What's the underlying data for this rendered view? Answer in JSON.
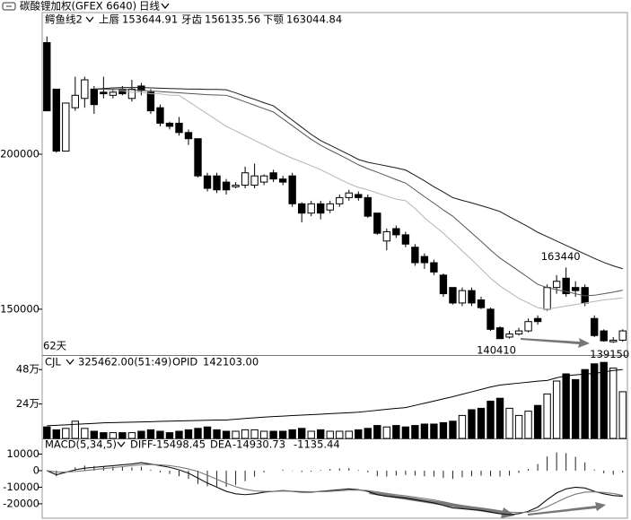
{
  "header": {
    "title": "碳酸锂加权(GFEX 6640)",
    "period": "日线"
  },
  "chart_data": [
    {
      "type": "candlestick",
      "indicator": "鳄鱼线2",
      "period_label": "62天",
      "up_color": "#ffffff",
      "down_color": "#000000",
      "ylim": [
        135500,
        245700
      ],
      "yticks": [
        150000,
        200000
      ],
      "open": [
        236000,
        221000,
        201000,
        215000,
        218000,
        221000,
        220000,
        219000,
        221000,
        218000,
        222000,
        220000,
        215000,
        210000,
        210000,
        207000,
        205000,
        193000,
        193000,
        191000,
        189500,
        190000,
        190000,
        191000,
        194000,
        192000,
        193000,
        184000,
        181000,
        184000,
        182000,
        184000,
        186000,
        187000,
        186000,
        181000,
        172000,
        176000,
        174000,
        170000,
        167000,
        165000,
        161000,
        157000,
        152000,
        156000,
        153000,
        150000,
        144000,
        141000,
        142000,
        143000,
        147000,
        150000,
        157000,
        160000,
        157000,
        157000,
        147000,
        143000,
        139500,
        140000
      ],
      "high": [
        238000,
        221000,
        216500,
        225000,
        225000,
        222000,
        225000,
        221000,
        222000,
        224000,
        223000,
        221000,
        216000,
        210500,
        212000,
        208000,
        205000,
        194000,
        194000,
        192000,
        191000,
        196000,
        197000,
        193500,
        195000,
        193000,
        194000,
        184500,
        185000,
        185000,
        185000,
        187000,
        188500,
        188000,
        187000,
        181000,
        176000,
        177000,
        175000,
        171000,
        168000,
        166000,
        161500,
        157000,
        157000,
        157000,
        154000,
        150500,
        144500,
        143000,
        144000,
        147000,
        148000,
        158000,
        161000,
        163440,
        159000,
        158000,
        148000,
        143500,
        141000,
        143500
      ],
      "low": [
        214000,
        200500,
        201000,
        214000,
        215000,
        213000,
        218000,
        218000,
        219000,
        217000,
        219000,
        213000,
        209000,
        208000,
        206000,
        203000,
        192500,
        188000,
        187500,
        187000,
        189000,
        189000,
        189000,
        190000,
        191000,
        190000,
        183000,
        178000,
        180000,
        179000,
        181000,
        183000,
        185000,
        185000,
        179500,
        174000,
        169000,
        173000,
        170000,
        164000,
        163000,
        161000,
        154000,
        151500,
        151000,
        151000,
        150000,
        143000,
        140410,
        140500,
        141500,
        142500,
        145000,
        149500,
        155000,
        154000,
        154000,
        151000,
        141000,
        139500,
        139150,
        139500
      ],
      "close": [
        214000,
        201000,
        216500,
        219000,
        224000,
        216000,
        219500,
        220000,
        219500,
        221000,
        220500,
        214000,
        210000,
        209000,
        207000,
        205000,
        193000,
        189000,
        188500,
        188500,
        190000,
        194000,
        193000,
        193000,
        192000,
        191000,
        184000,
        181000,
        184000,
        181000,
        184000,
        186000,
        187500,
        186000,
        180000,
        174500,
        175000,
        174000,
        171000,
        165000,
        165000,
        162000,
        155000,
        152000,
        156000,
        152000,
        150500,
        143500,
        140500,
        142000,
        143000,
        146000,
        146000,
        157000,
        159000,
        155000,
        156000,
        152000,
        141500,
        139800,
        140000,
        143000
      ],
      "series": [
        {
          "name": "上唇",
          "current": 153644.91,
          "color": "#b4b4b4",
          "values": [
            null,
            null,
            null,
            null,
            null,
            221000,
            221000,
            220500,
            220500,
            220000,
            220000,
            219500,
            219500,
            219000,
            219000,
            217000,
            215000,
            213000,
            211000,
            209000,
            207500,
            206000,
            204500,
            203000,
            201500,
            200000,
            198700,
            197500,
            196300,
            195000,
            193500,
            192000,
            190500,
            189300,
            188500,
            187500,
            186500,
            185500,
            185000,
            182500,
            179500,
            177000,
            174500,
            171700,
            168800,
            166000,
            163000,
            160000,
            157500,
            155500,
            153500,
            152000,
            150500,
            150000,
            150500,
            151000,
            151500,
            152000,
            152500,
            153000,
            153300,
            153645
          ]
        },
        {
          "name": "牙齿",
          "current": 156135.56,
          "color": "#555555",
          "values": [
            null,
            null,
            null,
            null,
            null,
            221000,
            221000,
            221000,
            221000,
            220800,
            220600,
            220400,
            220200,
            220000,
            219800,
            219600,
            219400,
            219200,
            219100,
            219000,
            218000,
            216900,
            215800,
            214700,
            213600,
            211400,
            209200,
            207000,
            204800,
            202900,
            201300,
            199800,
            198200,
            196600,
            195300,
            194200,
            193000,
            191800,
            190700,
            188500,
            186300,
            184200,
            182000,
            180000,
            177300,
            174600,
            171900,
            169100,
            166500,
            164400,
            162300,
            160200,
            158000,
            157000,
            156300,
            155700,
            155000,
            154300,
            154500,
            155000,
            155500,
            156136
          ]
        },
        {
          "name": "下颚",
          "current": 163044.84,
          "color": "#1a1a1a",
          "values": [
            null,
            null,
            null,
            null,
            null,
            221000,
            221200,
            221400,
            221500,
            221500,
            221500,
            221400,
            221300,
            221200,
            221100,
            221000,
            221000,
            220900,
            220900,
            220800,
            219800,
            218700,
            217700,
            216600,
            215600,
            213300,
            211000,
            208700,
            206400,
            204400,
            202900,
            201400,
            199900,
            198300,
            197400,
            196800,
            196200,
            195600,
            194900,
            193200,
            191400,
            189500,
            187800,
            186000,
            185100,
            184300,
            183400,
            182500,
            181500,
            179800,
            178200,
            176600,
            174800,
            173400,
            172000,
            170600,
            169200,
            167800,
            166400,
            165100,
            164000,
            163045
          ]
        }
      ],
      "annotations": [
        {
          "value": 163440,
          "candle": 55
        },
        {
          "value": 140410,
          "candle": 48
        },
        {
          "value": 139150,
          "candle": 60
        }
      ]
    },
    {
      "type": "volume",
      "volume_text": "325462.00(51:49)",
      "opid_text": "142103.00",
      "ylim": [
        0,
        575000
      ],
      "yticks": [
        {
          "value": 240000,
          "label": "24万"
        },
        {
          "value": 480000,
          "label": "48万"
        }
      ],
      "y2lim": [
        0,
        170000
      ],
      "series": [
        {
          "name": "CJL",
          "values": [
            80000,
            60000,
            70000,
            120000,
            70000,
            50000,
            40000,
            40000,
            40000,
            40000,
            50000,
            60000,
            50000,
            40000,
            50000,
            60000,
            70000,
            80000,
            60000,
            50000,
            50000,
            60000,
            60000,
            50000,
            50000,
            50000,
            60000,
            70000,
            50000,
            60000,
            50000,
            50000,
            50000,
            60000,
            70000,
            90000,
            80000,
            90000,
            80000,
            90000,
            100000,
            100000,
            110000,
            120000,
            160000,
            200000,
            210000,
            260000,
            280000,
            210000,
            160000,
            190000,
            230000,
            310000,
            400000,
            450000,
            410000,
            480000,
            520000,
            530000,
            490000,
            325462
          ]
        },
        {
          "name": "OPID",
          "axis": "y2",
          "color": "#000000",
          "values": [
            26000,
            27000,
            28000,
            29000,
            30000,
            31000,
            32000,
            32500,
            33000,
            33500,
            34000,
            34500,
            35000,
            35500,
            36000,
            36500,
            37000,
            37500,
            37800,
            38000,
            39500,
            41000,
            42500,
            44000,
            45000,
            46000,
            47000,
            48000,
            49000,
            50000,
            51000,
            52000,
            53000,
            54000,
            56000,
            58000,
            60000,
            62000,
            63500,
            68000,
            72500,
            77000,
            81500,
            86000,
            91000,
            96000,
            101000,
            106000,
            110000,
            112000,
            114000,
            116000,
            118000,
            119500,
            125000,
            129000,
            131000,
            132600,
            134000,
            137000,
            140000,
            142103
          ]
        }
      ]
    },
    {
      "type": "macd",
      "title": "MACD(5,34,5)",
      "ylim": [
        -28700,
        18900
      ],
      "yticks": [
        10000,
        0,
        -10000,
        -20000
      ],
      "series": [
        {
          "name": "DIFF",
          "current": -15498.45,
          "color": "#111111",
          "values": [
            0,
            -2500,
            -1000,
            500,
            1500,
            2000,
            2500,
            3000,
            3500,
            4000,
            4800,
            4000,
            3000,
            2000,
            500,
            -1500,
            -4500,
            -7500,
            -10000,
            -12500,
            -14000,
            -14500,
            -14000,
            -13000,
            -12500,
            -12000,
            -12500,
            -13000,
            -13000,
            -12500,
            -12000,
            -11500,
            -11000,
            -11500,
            -12500,
            -14500,
            -15500,
            -16000,
            -16500,
            -17500,
            -18500,
            -19500,
            -21000,
            -22500,
            -23000,
            -23500,
            -24000,
            -25000,
            -26000,
            -26500,
            -26000,
            -24500,
            -22000,
            -17500,
            -13500,
            -11000,
            -10000,
            -10500,
            -12500,
            -14000,
            -15000,
            -15498.45
          ]
        },
        {
          "name": "DEA",
          "current": -14930.73,
          "color": "#777777",
          "values": [
            0,
            -800,
            -900,
            -500,
            0,
            600,
            1200,
            1800,
            2400,
            3000,
            3600,
            3700,
            3500,
            3000,
            2200,
            1000,
            -500,
            -2800,
            -5200,
            -7600,
            -9700,
            -11300,
            -12200,
            -12500,
            -12500,
            -12300,
            -12400,
            -12600,
            -12700,
            -12700,
            -12500,
            -12200,
            -11800,
            -11700,
            -12000,
            -12800,
            -13700,
            -14500,
            -15200,
            -16000,
            -16800,
            -17700,
            -18800,
            -20000,
            -21000,
            -21800,
            -22500,
            -23300,
            -24200,
            -25000,
            -25300,
            -25000,
            -24000,
            -21800,
            -19000,
            -16300,
            -14200,
            -13000,
            -12800,
            -13200,
            -13800,
            -14930.73
          ]
        }
      ],
      "histogram": {
        "current": -1135.44,
        "color": "#222222",
        "values": [
          0,
          -3400,
          -200,
          2000,
          3000,
          2800,
          2600,
          2400,
          2200,
          2000,
          2400,
          600,
          -1000,
          -2000,
          -3400,
          -5000,
          -8000,
          -9400,
          -9600,
          -9800,
          -8600,
          -6400,
          -3600,
          -1000,
          0,
          600,
          -200,
          -800,
          -600,
          400,
          1000,
          1400,
          1600,
          400,
          -1000,
          -3400,
          -3600,
          -3000,
          -2600,
          -3000,
          -3400,
          -3600,
          -4400,
          -5000,
          -4000,
          -3400,
          -3000,
          -3400,
          -3600,
          -3000,
          -1400,
          1000,
          4000,
          8600,
          11000,
          10600,
          8400,
          5000,
          600,
          -1600,
          -2400,
          -1135.44
        ]
      }
    }
  ]
}
